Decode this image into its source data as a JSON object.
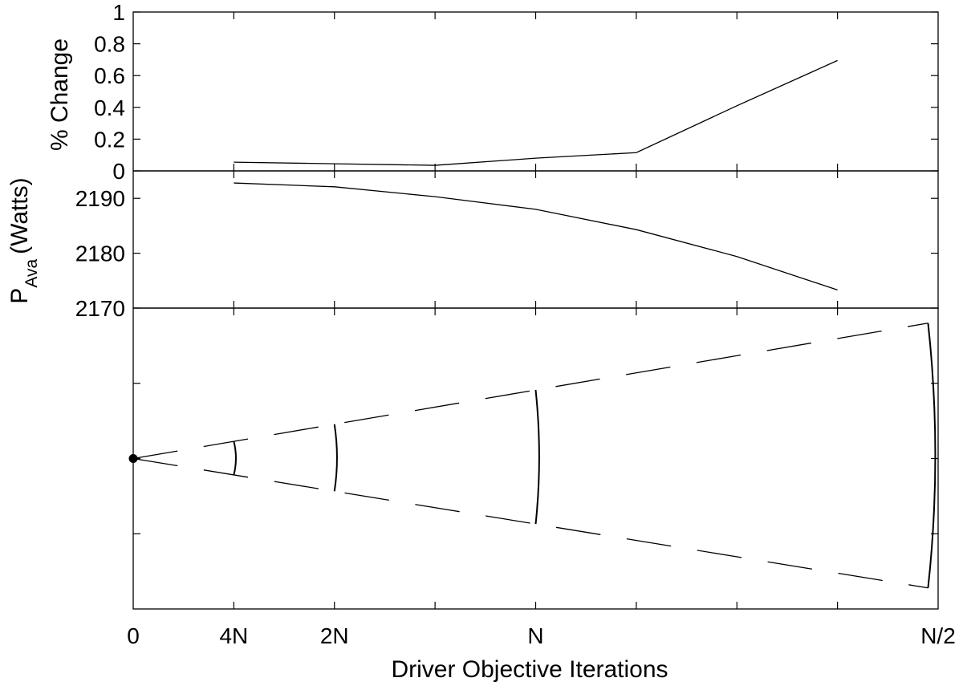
{
  "chart_data": [
    {
      "type": "line",
      "title": "",
      "xlabel": "",
      "ylabel": "% Change",
      "categories": [
        "0",
        "4N",
        "2N",
        "N",
        "N/2"
      ],
      "x": [
        1,
        2,
        3,
        4,
        5,
        6,
        7
      ],
      "series": [
        {
          "values": [
            0.055,
            0.045,
            0.035,
            0.08,
            0.115,
            0.41,
            0.695
          ]
        }
      ],
      "ylim": [
        0,
        1
      ],
      "yticks": [
        "0",
        "0.2",
        "0.4",
        "0.6",
        "0.8",
        "1"
      ],
      "grid": false
    },
    {
      "type": "line",
      "title": "",
      "xlabel": "",
      "ylabel_main": "P",
      "ylabel_sub": "Ava",
      "ylabel_unit": "(Watts)",
      "x": [
        1,
        2,
        3,
        4,
        5,
        6,
        7
      ],
      "series": [
        {
          "values": [
            2192.8,
            2192.1,
            2190.3,
            2188.0,
            2184.3,
            2179.4,
            2173.3
          ]
        }
      ],
      "ylim": [
        2170,
        2195
      ],
      "yticks": [
        "2170",
        "2180",
        "2190"
      ],
      "grid": false
    },
    {
      "type": "line",
      "title": "",
      "xlabel": "Driver Objective Iterations",
      "ylabel": "",
      "origin": {
        "x": 0,
        "y": 0
      },
      "outer_envelope": [
        {
          "x": 0,
          "y": 0
        },
        {
          "x": 7.9,
          "y": 1.8
        }
      ],
      "inner_envelope": [
        {
          "x": 0,
          "y": 0
        },
        {
          "x": 7.9,
          "y": -1.72
        }
      ],
      "arcs_at_x": [
        1,
        2,
        4,
        8
      ],
      "ylim": [
        -2,
        2
      ],
      "grid": false
    }
  ],
  "x_axis": {
    "ticks": [
      "0",
      "4N",
      "2N",
      "N",
      "N/2"
    ],
    "tick_positions": [
      0,
      1,
      2,
      4,
      8
    ],
    "range": [
      0,
      8
    ],
    "label": "Driver Objective Iterations"
  }
}
